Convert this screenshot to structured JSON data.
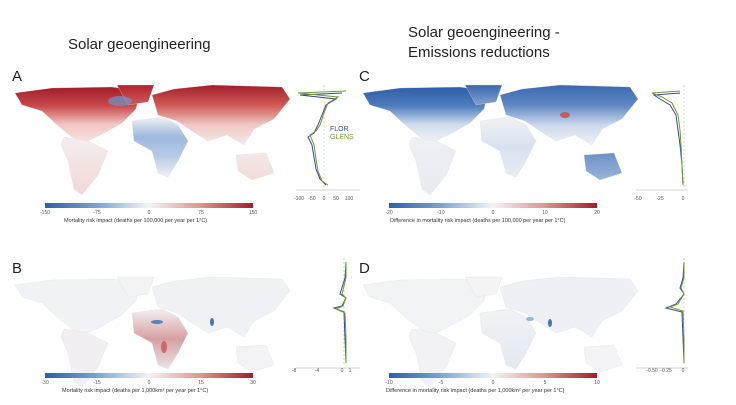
{
  "titles": {
    "left": "Solar geoengineering",
    "right_line1": "Solar geoengineering -",
    "right_line2": "Emissions reductions"
  },
  "panels": {
    "A": {
      "label": "A",
      "colorbar_ticks": [
        "-150",
        "-75",
        "0",
        "75",
        "150"
      ],
      "caption": "Mortality risk impact (deaths per 100,000 per year per 1°C)",
      "profile_ticks": [
        "-100",
        "-50",
        "0",
        "50",
        "100"
      ],
      "legend": [
        "FLOR",
        "GLENS"
      ]
    },
    "B": {
      "label": "B",
      "colorbar_ticks": [
        "-30",
        "-15",
        "0",
        "15",
        "30"
      ],
      "caption": "Mortality risk impact (deaths per 1,000km² per year per 1°C)",
      "profile_ticks": [
        "-8",
        "-4",
        "0",
        "1"
      ]
    },
    "C": {
      "label": "C",
      "colorbar_ticks": [
        "-20",
        "-10",
        "0",
        "10",
        "20"
      ],
      "caption": "Difference in mortality risk impact (deaths per 100,000 per year per 1°C)",
      "profile_ticks": [
        "-50",
        "-25",
        "0"
      ]
    },
    "D": {
      "label": "D",
      "colorbar_ticks": [
        "-10",
        "-5",
        "0",
        "5",
        "10"
      ],
      "caption": "Difference in mortality risk impact (deaths per 1,000km² per year per 1°C)",
      "profile_ticks": [
        "-0.50",
        "-0.25",
        "0"
      ]
    }
  },
  "colors": {
    "negative": "#2f5ea8",
    "neutral": "#f4f4f4",
    "positive": "#a11d2a",
    "flor": "#3b4a8a",
    "glens": "#6e9a3a"
  }
}
